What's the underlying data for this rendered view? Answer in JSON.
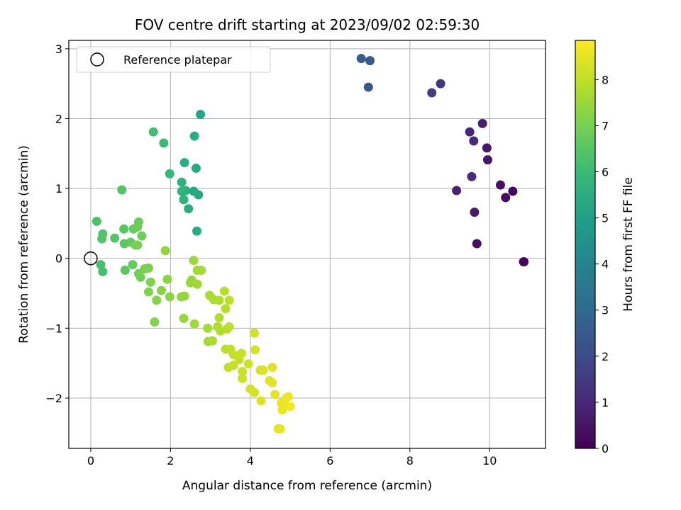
{
  "chart_data": {
    "type": "scatter",
    "title": "FOV centre drift starting at 2023/09/02 02:59:30",
    "xlabel": "Angular distance from reference (arcmin)",
    "ylabel": "Rotation from reference (arcmin)",
    "xlim": [
      -0.55,
      11.4
    ],
    "ylim": [
      -2.72,
      3.12
    ],
    "xticks": [
      0,
      2,
      4,
      6,
      8,
      10
    ],
    "yticks": [
      -2,
      -1,
      0,
      1,
      2,
      3
    ],
    "xtick_labels": [
      "0",
      "2",
      "4",
      "6",
      "8",
      "10"
    ],
    "ytick_labels": [
      "−2",
      "−1",
      "0",
      "1",
      "2",
      "3"
    ],
    "grid": true,
    "legend": {
      "position": "top-left",
      "label": "Reference platepar"
    },
    "reference_point": {
      "x": 0,
      "y": 0
    },
    "colorbar": {
      "label": "Hours from first FF file",
      "colormap": "viridis",
      "range": [
        0,
        8.85
      ],
      "ticks": [
        0,
        1,
        2,
        3,
        4,
        5,
        6,
        7,
        8
      ],
      "tick_labels": [
        "0",
        "1",
        "2",
        "3",
        "4",
        "5",
        "6",
        "7",
        "8"
      ]
    },
    "points": [
      {
        "x": 10.85,
        "y": -0.05,
        "h": 0.05
      },
      {
        "x": 10.86,
        "y": -0.05,
        "h": 0.1
      },
      {
        "x": 10.58,
        "y": 0.96,
        "h": 0.2
      },
      {
        "x": 10.4,
        "y": 0.87,
        "h": 0.25
      },
      {
        "x": 9.68,
        "y": 0.21,
        "h": 0.35
      },
      {
        "x": 10.27,
        "y": 1.05,
        "h": 0.4
      },
      {
        "x": 9.95,
        "y": 1.41,
        "h": 0.5
      },
      {
        "x": 9.93,
        "y": 1.58,
        "h": 0.55
      },
      {
        "x": 9.62,
        "y": 0.66,
        "h": 0.65
      },
      {
        "x": 9.82,
        "y": 1.93,
        "h": 0.75
      },
      {
        "x": 9.17,
        "y": 0.97,
        "h": 0.85
      },
      {
        "x": 9.5,
        "y": 1.81,
        "h": 0.95
      },
      {
        "x": 9.6,
        "y": 1.68,
        "h": 1.05
      },
      {
        "x": 9.55,
        "y": 1.17,
        "h": 1.2
      },
      {
        "x": 8.77,
        "y": 2.5,
        "h": 1.4
      },
      {
        "x": 8.55,
        "y": 2.37,
        "h": 1.6
      },
      {
        "x": 6.96,
        "y": 2.45,
        "h": 2.4
      },
      {
        "x": 7.0,
        "y": 2.83,
        "h": 2.5
      },
      {
        "x": 6.78,
        "y": 2.86,
        "h": 2.6
      },
      {
        "x": 2.75,
        "y": 2.06,
        "h": 5.2
      },
      {
        "x": 2.7,
        "y": 0.91,
        "h": 5.25
      },
      {
        "x": 2.64,
        "y": 1.29,
        "h": 5.3
      },
      {
        "x": 2.58,
        "y": 0.96,
        "h": 5.35
      },
      {
        "x": 2.66,
        "y": 0.39,
        "h": 5.4
      },
      {
        "x": 2.6,
        "y": 1.75,
        "h": 5.45
      },
      {
        "x": 2.45,
        "y": 0.71,
        "h": 5.5
      },
      {
        "x": 2.35,
        "y": 1.37,
        "h": 5.55
      },
      {
        "x": 2.38,
        "y": 0.97,
        "h": 5.6
      },
      {
        "x": 2.28,
        "y": 1.09,
        "h": 5.65
      },
      {
        "x": 2.33,
        "y": 0.84,
        "h": 5.7
      },
      {
        "x": 2.28,
        "y": 0.96,
        "h": 5.75
      },
      {
        "x": 1.98,
        "y": 1.21,
        "h": 5.85
      },
      {
        "x": 1.83,
        "y": 1.65,
        "h": 6.0
      },
      {
        "x": 1.57,
        "y": 1.81,
        "h": 6.1
      },
      {
        "x": 0.3,
        "y": -0.19,
        "h": 6.2
      },
      {
        "x": 0.25,
        "y": -0.09,
        "h": 6.25
      },
      {
        "x": 0.15,
        "y": 0.53,
        "h": 6.3
      },
      {
        "x": 0.3,
        "y": 0.35,
        "h": 6.35
      },
      {
        "x": 0.28,
        "y": 0.28,
        "h": 6.4
      },
      {
        "x": 0.6,
        "y": 0.29,
        "h": 6.45
      },
      {
        "x": 0.83,
        "y": 0.42,
        "h": 6.5
      },
      {
        "x": 0.84,
        "y": 0.21,
        "h": 6.55
      },
      {
        "x": 0.86,
        "y": -0.17,
        "h": 6.6
      },
      {
        "x": 1.0,
        "y": 0.23,
        "h": 6.65
      },
      {
        "x": 1.05,
        "y": -0.09,
        "h": 6.7
      },
      {
        "x": 1.07,
        "y": 0.42,
        "h": 6.75
      },
      {
        "x": 1.17,
        "y": 0.45,
        "h": 6.8
      },
      {
        "x": 1.2,
        "y": 0.52,
        "h": 6.82
      },
      {
        "x": 1.28,
        "y": 0.32,
        "h": 6.85
      },
      {
        "x": 1.17,
        "y": 0.19,
        "h": 6.9
      },
      {
        "x": 1.2,
        "y": -0.22,
        "h": 6.92
      },
      {
        "x": 1.25,
        "y": -0.27,
        "h": 6.95
      },
      {
        "x": 0.78,
        "y": 0.98,
        "h": 6.4
      },
      {
        "x": 1.12,
        "y": 0.19,
        "h": 7.0
      },
      {
        "x": 1.35,
        "y": -0.15,
        "h": 7.05
      },
      {
        "x": 1.45,
        "y": -0.14,
        "h": 7.08
      },
      {
        "x": 1.5,
        "y": -0.34,
        "h": 7.1
      },
      {
        "x": 1.45,
        "y": -0.48,
        "h": 7.12
      },
      {
        "x": 1.6,
        "y": -0.91,
        "h": 7.15
      },
      {
        "x": 1.65,
        "y": -0.6,
        "h": 7.18
      },
      {
        "x": 1.77,
        "y": -0.46,
        "h": 7.2
      },
      {
        "x": 1.92,
        "y": -0.3,
        "h": 7.25
      },
      {
        "x": 1.98,
        "y": -0.55,
        "h": 7.3
      },
      {
        "x": 1.87,
        "y": 0.11,
        "h": 7.35
      },
      {
        "x": 2.27,
        "y": -0.55,
        "h": 7.38
      },
      {
        "x": 2.35,
        "y": -0.54,
        "h": 7.4
      },
      {
        "x": 2.33,
        "y": -0.86,
        "h": 7.42
      },
      {
        "x": 2.5,
        "y": -0.35,
        "h": 7.45
      },
      {
        "x": 2.53,
        "y": -0.31,
        "h": 7.48
      },
      {
        "x": 2.58,
        "y": -0.03,
        "h": 7.5
      },
      {
        "x": 2.6,
        "y": -0.94,
        "h": 7.52
      },
      {
        "x": 2.67,
        "y": -0.37,
        "h": 7.55
      },
      {
        "x": 2.67,
        "y": -0.17,
        "h": 7.58
      },
      {
        "x": 2.77,
        "y": -0.17,
        "h": 7.6
      },
      {
        "x": 2.93,
        "y": -1.0,
        "h": 7.62
      },
      {
        "x": 2.94,
        "y": -1.19,
        "h": 7.65
      },
      {
        "x": 2.98,
        "y": -0.53,
        "h": 7.68
      },
      {
        "x": 3.05,
        "y": -1.18,
        "h": 7.7
      },
      {
        "x": 3.08,
        "y": -0.59,
        "h": 7.72
      },
      {
        "x": 3.18,
        "y": -0.98,
        "h": 7.75
      },
      {
        "x": 3.22,
        "y": -0.6,
        "h": 7.78
      },
      {
        "x": 3.22,
        "y": -0.85,
        "h": 7.8
      },
      {
        "x": 3.25,
        "y": -1.04,
        "h": 7.82
      },
      {
        "x": 3.35,
        "y": -0.47,
        "h": 7.85
      },
      {
        "x": 3.38,
        "y": -0.72,
        "h": 7.88
      },
      {
        "x": 3.42,
        "y": -1.01,
        "h": 7.9
      },
      {
        "x": 3.47,
        "y": -0.98,
        "h": 7.92
      },
      {
        "x": 3.47,
        "y": -0.6,
        "h": 7.95
      },
      {
        "x": 3.38,
        "y": -1.3,
        "h": 7.98
      },
      {
        "x": 3.5,
        "y": -1.3,
        "h": 8.0
      },
      {
        "x": 3.45,
        "y": -1.56,
        "h": 8.02
      },
      {
        "x": 3.58,
        "y": -1.38,
        "h": 8.05
      },
      {
        "x": 3.58,
        "y": -1.53,
        "h": 8.08
      },
      {
        "x": 3.72,
        "y": -1.45,
        "h": 8.1
      },
      {
        "x": 3.78,
        "y": -1.36,
        "h": 8.12
      },
      {
        "x": 3.8,
        "y": -1.62,
        "h": 8.15
      },
      {
        "x": 3.8,
        "y": -1.72,
        "h": 8.18
      },
      {
        "x": 3.95,
        "y": -1.51,
        "h": 8.2
      },
      {
        "x": 4.1,
        "y": -1.07,
        "h": 8.22
      },
      {
        "x": 4.12,
        "y": -1.31,
        "h": 8.25
      },
      {
        "x": 4.0,
        "y": -1.87,
        "h": 8.28
      },
      {
        "x": 4.1,
        "y": -1.92,
        "h": 8.3
      },
      {
        "x": 4.25,
        "y": -1.6,
        "h": 8.32
      },
      {
        "x": 4.32,
        "y": -1.6,
        "h": 8.35
      },
      {
        "x": 4.27,
        "y": -2.04,
        "h": 8.38
      },
      {
        "x": 4.48,
        "y": -1.75,
        "h": 8.4
      },
      {
        "x": 4.55,
        "y": -1.56,
        "h": 8.42
      },
      {
        "x": 4.55,
        "y": -1.78,
        "h": 8.45
      },
      {
        "x": 4.62,
        "y": -1.95,
        "h": 8.48
      },
      {
        "x": 4.7,
        "y": -2.44,
        "h": 8.5
      },
      {
        "x": 4.75,
        "y": -2.44,
        "h": 8.52
      },
      {
        "x": 4.78,
        "y": -2.07,
        "h": 8.55
      },
      {
        "x": 4.8,
        "y": -2.17,
        "h": 8.58
      },
      {
        "x": 4.85,
        "y": -2.09,
        "h": 8.6
      },
      {
        "x": 4.9,
        "y": -2.0,
        "h": 8.62
      },
      {
        "x": 4.95,
        "y": -1.98,
        "h": 8.65
      },
      {
        "x": 5.0,
        "y": -2.12,
        "h": 8.7
      }
    ]
  }
}
